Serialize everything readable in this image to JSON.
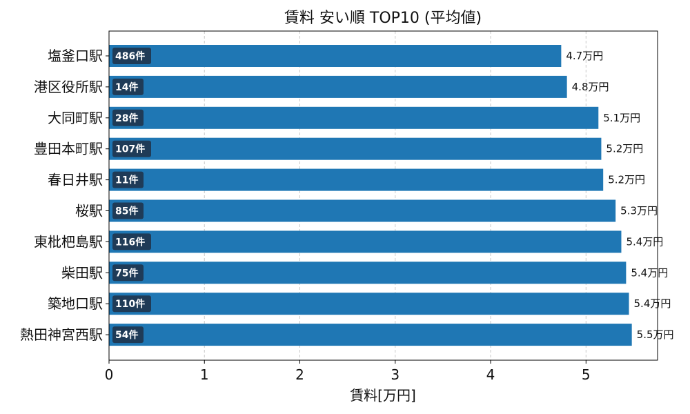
{
  "chart_data": {
    "type": "bar",
    "orientation": "horizontal",
    "title": "賃料 安い順 TOP10 (平均値)",
    "xlabel": "賃料[万円]",
    "ylabel": "",
    "xlim": [
      0,
      5.75
    ],
    "xticks": [
      0,
      1,
      2,
      3,
      4,
      5
    ],
    "grid": "x-dashed",
    "bar_color": "#1f77b4",
    "count_badge_color": "#1f3b57",
    "categories": [
      "塩釜口駅",
      "港区役所駅",
      "大同町駅",
      "豊田本町駅",
      "春日井駅",
      "桜駅",
      "東枇杷島駅",
      "柴田駅",
      "築地口駅",
      "熱田神宮西駅"
    ],
    "values": [
      4.74,
      4.8,
      5.13,
      5.16,
      5.18,
      5.31,
      5.37,
      5.42,
      5.45,
      5.48
    ],
    "value_labels": [
      "4.7万円",
      "4.8万円",
      "5.1万円",
      "5.2万円",
      "5.2万円",
      "5.3万円",
      "5.4万円",
      "5.4万円",
      "5.4万円",
      "5.5万円"
    ],
    "count_labels": [
      "486件",
      "14件",
      "28件",
      "107件",
      "11件",
      "85件",
      "116件",
      "75件",
      "110件",
      "54件"
    ]
  }
}
